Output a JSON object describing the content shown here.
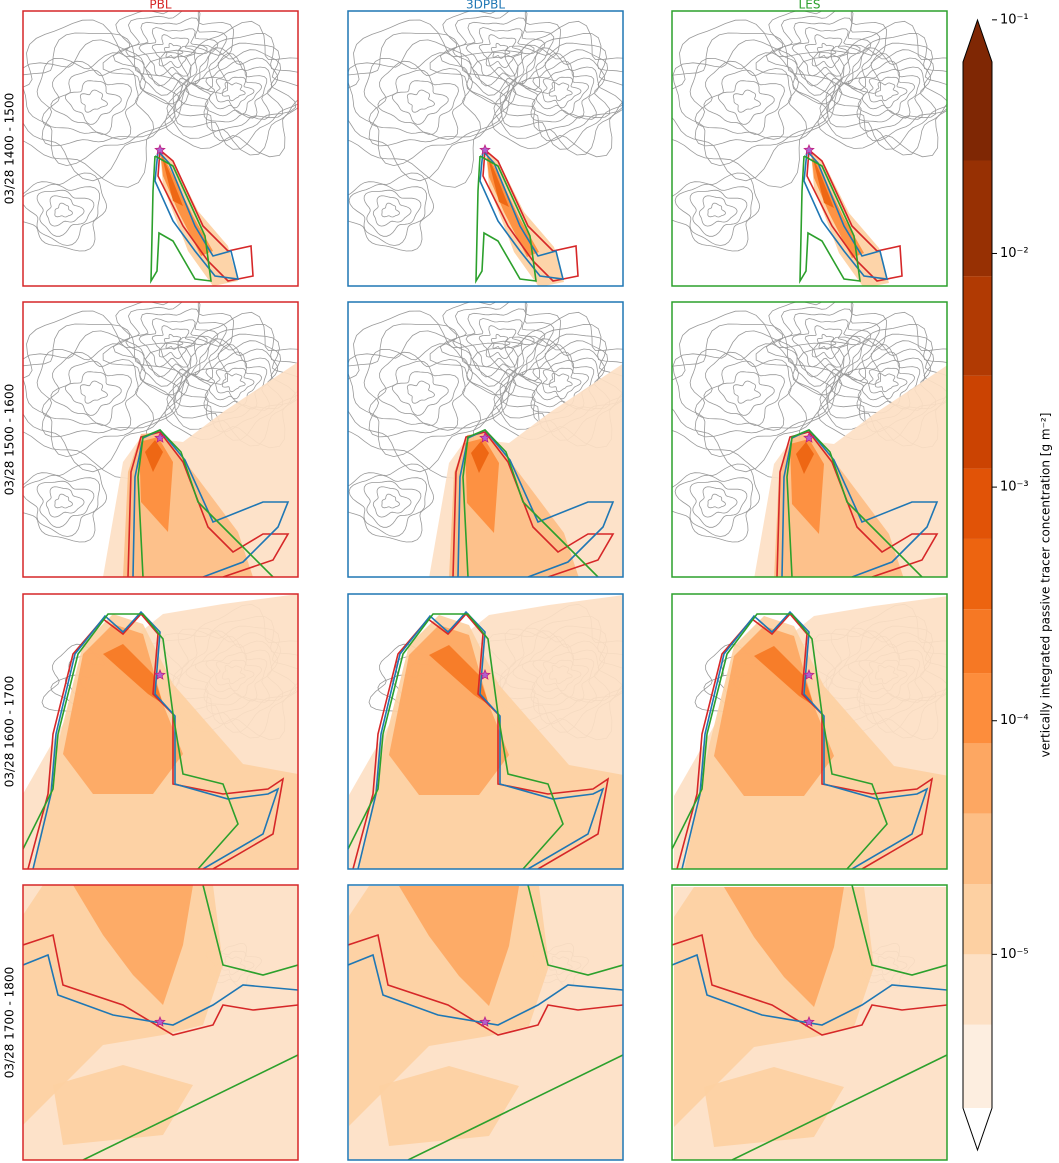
{
  "chart_data": {
    "type": "map-grid",
    "columns": [
      {
        "name": "PBL",
        "color": "#d62728"
      },
      {
        "name": "3DPBL",
        "color": "#1f77b4"
      },
      {
        "name": "LES",
        "color": "#2ca02c"
      }
    ],
    "rows": [
      "03/28 1400 - 1500",
      "03/28 1500 - 1600",
      "03/28 1600 - 1700",
      "03/28 1700 - 1800"
    ],
    "colorbar": {
      "label": "vertically integrated passive tracer concentration [g m⁻²]",
      "scale": "log",
      "lim": [
        2.2e-06,
        0.066
      ],
      "ticks": [
        {
          "value": 1e-05,
          "label": "10⁻⁵"
        },
        {
          "value": 0.0001,
          "label": "10⁻⁴"
        },
        {
          "value": 0.001,
          "label": "10⁻³"
        },
        {
          "value": 0.01,
          "label": "10⁻²"
        },
        {
          "value": 0.1,
          "label": "10⁻¹"
        }
      ],
      "levels": [
        2.2e-06,
        5e-06,
        1e-05,
        2e-05,
        4e-05,
        8e-05,
        0.00016,
        0.0003,
        0.0006,
        0.0012,
        0.003,
        0.008,
        0.025,
        0.066
      ],
      "colors": [
        "#fdeee0",
        "#fde0c4",
        "#fdd0a2",
        "#fdbe85",
        "#fda762",
        "#fd8d3c",
        "#f67824",
        "#ed6410",
        "#e15307",
        "#cb4302",
        "#b13a03",
        "#973003",
        "#7f2704"
      ],
      "under_color": "#ffffff",
      "over_color": "#7f2704"
    }
  }
}
